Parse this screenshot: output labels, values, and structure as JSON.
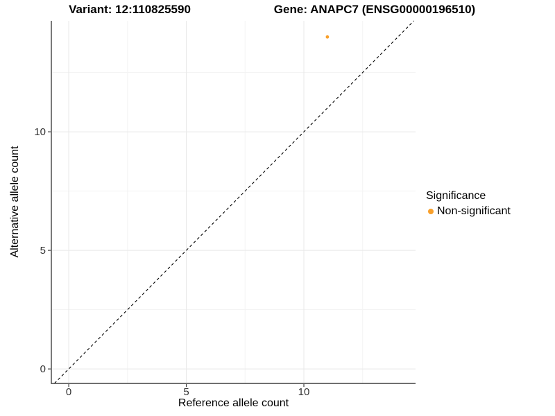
{
  "header": {
    "variant_title": "Variant: 12:110825590",
    "gene_title": "Gene: ANAPC7 (ENSG00000196510)"
  },
  "chart_data": {
    "type": "scatter",
    "titles": [
      "Variant: 12:110825590",
      "Gene: ANAPC7 (ENSG00000196510)"
    ],
    "xlabel": "Reference allele count",
    "ylabel": "Alternative allele count",
    "xlim": [
      -0.74,
      14.75
    ],
    "ylim": [
      -0.61,
      14.68
    ],
    "x_ticks": {
      "major": [
        0,
        5,
        10
      ],
      "minor": [
        2.5,
        7.5,
        12.5
      ]
    },
    "y_ticks": {
      "major": [
        0,
        5,
        10
      ],
      "minor": [
        2.5,
        7.5,
        12.5
      ]
    },
    "grid": "major+minor",
    "series": [
      {
        "name": "Non-significant",
        "color": "#F9A02B",
        "points": [
          {
            "x": 11,
            "y": 14
          }
        ]
      }
    ],
    "reference_line": {
      "label": "identity line y = x",
      "slope": 1,
      "intercept": 0,
      "style": "dashed",
      "color": "#000000"
    },
    "legend": {
      "title": "Significance",
      "position": "right",
      "items": [
        {
          "label": "Non-significant",
          "color": "#F9A02B",
          "marker": "circle"
        }
      ]
    },
    "style": {
      "background": "#FFFFFF",
      "grid_major": "#E8E8E8",
      "grid_minor": "#F3F3F3",
      "axis_line": "#404040",
      "tick_label": "#333333",
      "point_radius": 2.4
    }
  }
}
